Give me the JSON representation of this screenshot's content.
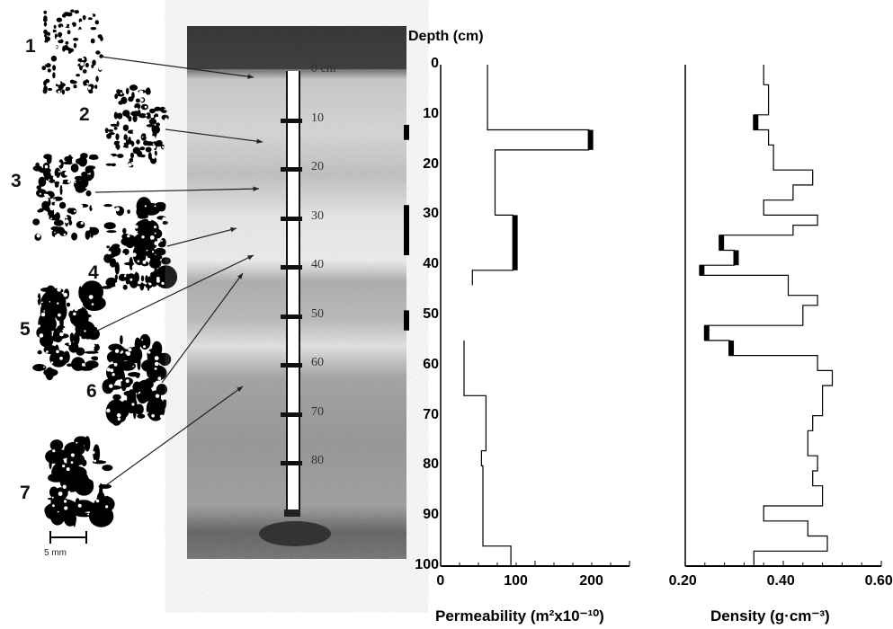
{
  "samples": [
    "1",
    "2",
    "3",
    "4",
    "5",
    "6",
    "7"
  ],
  "scale_bar_label": "5 mm",
  "core_scale": {
    "labels": [
      "0 cm",
      "10",
      "20",
      "30",
      "40",
      "50",
      "60",
      "70",
      "80"
    ]
  },
  "depth_axis": {
    "title": "Depth (cm)",
    "ticks": [
      "0",
      "10",
      "20",
      "30",
      "40",
      "50",
      "60",
      "70",
      "80",
      "90",
      "100"
    ]
  },
  "chart_data": [
    {
      "type": "line",
      "title": "",
      "xlabel": "Permeability  (m²x10⁻¹⁰)",
      "ylabel": "Depth (cm)",
      "xlim": [
        0,
        250
      ],
      "ylim": [
        100,
        0
      ],
      "x_ticks": [
        "0",
        "100",
        "200"
      ],
      "segments": [
        {
          "depth_from": 0,
          "depth_to": 13,
          "value": 62
        },
        {
          "depth_from": 13,
          "depth_to": 17,
          "value": 196
        },
        {
          "depth_from": 17,
          "depth_to": 30,
          "value": 72
        },
        {
          "depth_from": 30,
          "depth_to": 41,
          "value": 96
        },
        {
          "depth_from": 41,
          "depth_to": 44,
          "value": 42
        },
        {
          "depth_from": 55,
          "depth_to": 66,
          "value": 31
        },
        {
          "depth_from": 66,
          "depth_to": 77,
          "value": 60
        },
        {
          "depth_from": 77,
          "depth_to": 80,
          "value": 54
        },
        {
          "depth_from": 80,
          "depth_to": 96,
          "value": 56
        },
        {
          "depth_from": 96,
          "depth_to": 100,
          "value": 93
        }
      ],
      "highlighted_depths": [
        [
          13,
          17
        ],
        [
          30,
          41
        ]
      ]
    },
    {
      "type": "line",
      "title": "",
      "xlabel": "Density (g·cm⁻³)",
      "ylabel": "Depth (cm)",
      "xlim": [
        0.2,
        0.6
      ],
      "ylim": [
        100,
        0
      ],
      "x_ticks": [
        "0.20",
        "0.40",
        "0.60"
      ],
      "segments": [
        {
          "depth_from": 0,
          "depth_to": 4,
          "value": 0.36
        },
        {
          "depth_from": 4,
          "depth_to": 10,
          "value": 0.37
        },
        {
          "depth_from": 10,
          "depth_to": 13,
          "value": 0.34
        },
        {
          "depth_from": 13,
          "depth_to": 16,
          "value": 0.37
        },
        {
          "depth_from": 16,
          "depth_to": 21,
          "value": 0.38
        },
        {
          "depth_from": 21,
          "depth_to": 24,
          "value": 0.46
        },
        {
          "depth_from": 24,
          "depth_to": 27,
          "value": 0.42
        },
        {
          "depth_from": 27,
          "depth_to": 30,
          "value": 0.36
        },
        {
          "depth_from": 30,
          "depth_to": 32,
          "value": 0.47
        },
        {
          "depth_from": 32,
          "depth_to": 34,
          "value": 0.42
        },
        {
          "depth_from": 34,
          "depth_to": 37,
          "value": 0.27
        },
        {
          "depth_from": 37,
          "depth_to": 40,
          "value": 0.3
        },
        {
          "depth_from": 40,
          "depth_to": 42,
          "value": 0.23
        },
        {
          "depth_from": 42,
          "depth_to": 46,
          "value": 0.41
        },
        {
          "depth_from": 46,
          "depth_to": 48,
          "value": 0.47
        },
        {
          "depth_from": 48,
          "depth_to": 52,
          "value": 0.44
        },
        {
          "depth_from": 52,
          "depth_to": 55,
          "value": 0.24
        },
        {
          "depth_from": 55,
          "depth_to": 58,
          "value": 0.29
        },
        {
          "depth_from": 58,
          "depth_to": 61,
          "value": 0.47
        },
        {
          "depth_from": 61,
          "depth_to": 64,
          "value": 0.5
        },
        {
          "depth_from": 64,
          "depth_to": 70,
          "value": 0.48
        },
        {
          "depth_from": 70,
          "depth_to": 73,
          "value": 0.46
        },
        {
          "depth_from": 73,
          "depth_to": 78,
          "value": 0.45
        },
        {
          "depth_from": 78,
          "depth_to": 81,
          "value": 0.47
        },
        {
          "depth_from": 81,
          "depth_to": 84,
          "value": 0.46
        },
        {
          "depth_from": 84,
          "depth_to": 88,
          "value": 0.48
        },
        {
          "depth_from": 88,
          "depth_to": 91,
          "value": 0.36
        },
        {
          "depth_from": 91,
          "depth_to": 94,
          "value": 0.45
        },
        {
          "depth_from": 94,
          "depth_to": 97,
          "value": 0.49
        },
        {
          "depth_from": 97,
          "depth_to": 100,
          "value": 0.34
        }
      ],
      "highlighted_depths": [
        [
          10,
          13
        ],
        [
          34,
          37
        ],
        [
          37,
          40
        ],
        [
          40,
          42
        ],
        [
          52,
          55
        ],
        [
          55,
          58
        ]
      ]
    }
  ],
  "sample_markers_depths": [
    [
      12,
      15
    ],
    [
      28,
      38
    ],
    [
      49,
      53
    ]
  ]
}
